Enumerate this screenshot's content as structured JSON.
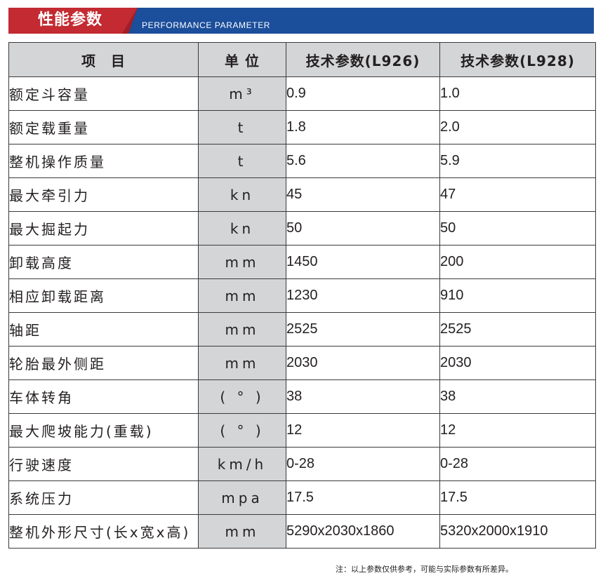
{
  "banner": {
    "title": "性能参数",
    "subtitle": "PERFORMANCE PARAMETER",
    "colors": {
      "red": "#c32a31",
      "blue": "#1b4e9b"
    }
  },
  "table": {
    "headers": [
      "项　目",
      "单 位",
      "技术参数(L926)",
      "技术参数(L928)"
    ],
    "rows": [
      {
        "name": "额定斗容量",
        "unit": "m³",
        "l926": "0.9",
        "l928": "1.0"
      },
      {
        "name": "额定载重量",
        "unit": "t",
        "l926": "1.8",
        "l928": "2.0"
      },
      {
        "name": "整机操作质量",
        "unit": "t",
        "l926": "5.6",
        "l928": "5.9"
      },
      {
        "name": "最大牵引力",
        "unit": "kn",
        "l926": "45",
        "l928": "47"
      },
      {
        "name": "最大掘起力",
        "unit": "kn",
        "l926": "50",
        "l928": "50"
      },
      {
        "name": "卸载高度",
        "unit": "mm",
        "l926": "1450",
        "l928": "200"
      },
      {
        "name": "相应卸载距离",
        "unit": "mm",
        "l926": "1230",
        "l928": "910"
      },
      {
        "name": "轴距",
        "unit": "mm",
        "l926": "2525",
        "l928": "2525"
      },
      {
        "name": "轮胎最外侧距",
        "unit": "mm",
        "l926": "2030",
        "l928": "2030"
      },
      {
        "name": "车体转角",
        "unit": "( ° )",
        "l926": "38",
        "l928": "38"
      },
      {
        "name": "最大爬坡能力(重载)",
        "unit": "( ° )",
        "l926": "12",
        "l928": "12"
      },
      {
        "name": "行驶速度",
        "unit": "km/h",
        "l926": "0-28",
        "l928": "0-28"
      },
      {
        "name": "系统压力",
        "unit": "mpa",
        "l926": "17.5",
        "l928": "17.5"
      },
      {
        "name": "整机外形尺寸(长x宽x高)",
        "unit": "mm",
        "l926": "5290x2030x1860",
        "l928": "5320x2000x1910"
      }
    ]
  },
  "note": "注：以上参数仅供参考，可能与实际参数有所差异。"
}
